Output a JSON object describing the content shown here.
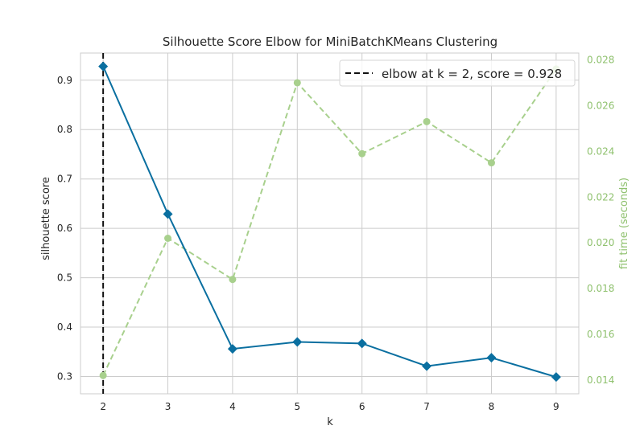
{
  "chart_data": {
    "type": "line",
    "title": "Silhouette Score Elbow for MiniBatchKMeans Clustering",
    "xlabel": "k",
    "ylabel": "silhouette score",
    "y2label": "fit time (seconds)",
    "x": [
      2,
      3,
      4,
      5,
      6,
      7,
      8,
      9
    ],
    "xticks": [
      "2",
      "3",
      "4",
      "5",
      "6",
      "7",
      "8",
      "9"
    ],
    "ylim": [
      0.265,
      0.955
    ],
    "yticks": [
      "0.3",
      "0.4",
      "0.5",
      "0.6",
      "0.7",
      "0.8",
      "0.9"
    ],
    "y2lim": [
      0.0134,
      0.0283
    ],
    "y2ticks": [
      "0.014",
      "0.016",
      "0.018",
      "0.020",
      "0.022",
      "0.024",
      "0.026",
      "0.028"
    ],
    "grid": true,
    "legend_position": "top-right",
    "legend_label": "elbow at k = 2, score = 0.928",
    "elbow_x": 2,
    "series": [
      {
        "values": [
          0.928,
          0.629,
          0.356,
          0.37,
          0.367,
          0.321,
          0.338,
          0.299
        ],
        "axis": "left",
        "color": "#0a6fa0",
        "marker": "diamond",
        "style": "solid"
      },
      {
        "values": [
          0.0142,
          0.0202,
          0.0184,
          0.027,
          0.0239,
          0.0253,
          0.0235,
          0.0276
        ],
        "axis": "right",
        "color": "#a8d08d",
        "marker": "circle",
        "style": "dashed"
      }
    ]
  }
}
